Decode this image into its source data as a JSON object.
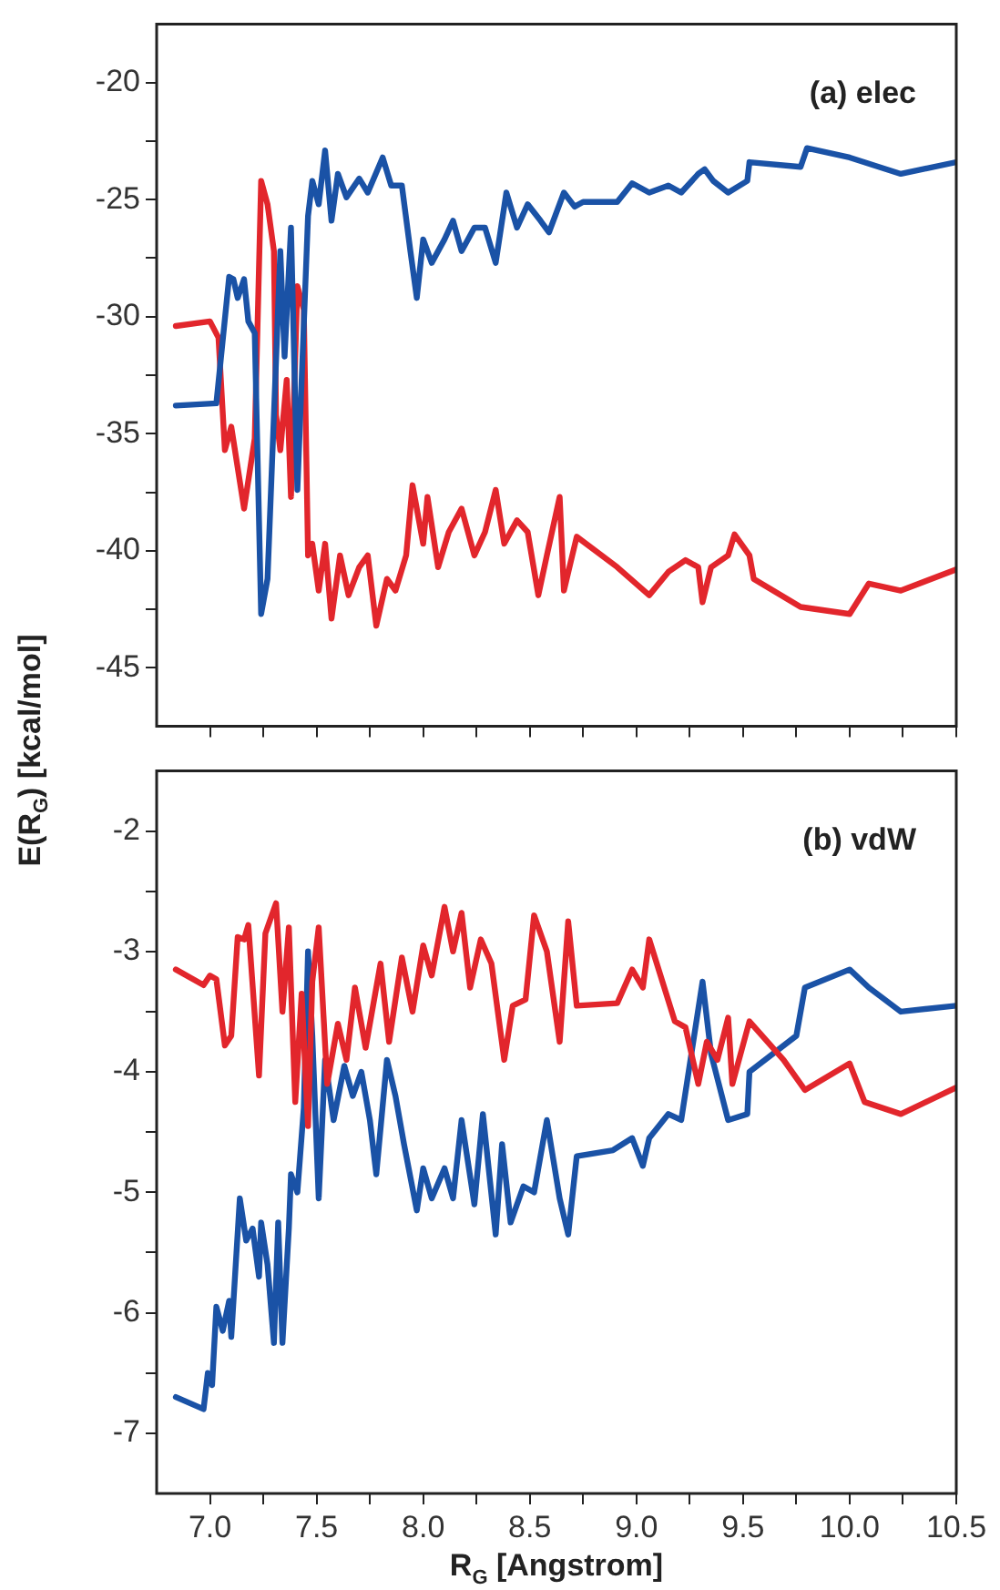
{
  "chart_data": [
    {
      "type": "line",
      "title": "(a) elec",
      "ylabel": "E(R$_{G}$) [kcal/mol]",
      "xlim": [
        6.75,
        10.5
      ],
      "ylim": [
        -47.5,
        -17.5
      ],
      "xticks": [
        {
          "value": 7.0,
          "label": null
        },
        {
          "value": 7.25,
          "label": null
        },
        {
          "value": 7.5,
          "label": null
        },
        {
          "value": 7.75,
          "label": null
        },
        {
          "value": 8.0,
          "label": null
        },
        {
          "value": 8.25,
          "label": null
        },
        {
          "value": 8.5,
          "label": null
        },
        {
          "value": 8.75,
          "label": null
        },
        {
          "value": 9.0,
          "label": null
        },
        {
          "value": 9.25,
          "label": null
        },
        {
          "value": 9.5,
          "label": null
        },
        {
          "value": 9.75,
          "label": null
        },
        {
          "value": 10.0,
          "label": null
        },
        {
          "value": 10.25,
          "label": null
        },
        {
          "value": 10.5,
          "label": null
        }
      ],
      "yticks": [
        {
          "value": -45,
          "label": "-45"
        },
        {
          "value": -42.5,
          "label": null
        },
        {
          "value": -40,
          "label": "-40"
        },
        {
          "value": -37.5,
          "label": null
        },
        {
          "value": -35,
          "label": "-35"
        },
        {
          "value": -32.5,
          "label": null
        },
        {
          "value": -30,
          "label": "-30"
        },
        {
          "value": -27.5,
          "label": null
        },
        {
          "value": -25,
          "label": "-25"
        },
        {
          "value": -22.5,
          "label": null
        },
        {
          "value": -20,
          "label": "-20"
        }
      ],
      "tick_labels": "y",
      "grid": false,
      "legend": false,
      "marker": "none",
      "line_style": "solid",
      "series": [
        {
          "color": "#1a52a6",
          "x": [
            6.84,
            7.03,
            7.09,
            7.11,
            7.13,
            7.16,
            7.18,
            7.21,
            7.24,
            7.27,
            7.3,
            7.33,
            7.35,
            7.38,
            7.41,
            7.46,
            7.48,
            7.51,
            7.54,
            7.57,
            7.6,
            7.64,
            7.7,
            7.74,
            7.81,
            7.85,
            7.9,
            7.94,
            7.97,
            8.0,
            8.04,
            8.1,
            8.14,
            8.18,
            8.24,
            8.29,
            8.34,
            8.39,
            8.44,
            8.49,
            8.55,
            8.59,
            8.66,
            8.71,
            8.75,
            8.91,
            8.98,
            9.06,
            9.15,
            9.21,
            9.29,
            9.32,
            9.36,
            9.43,
            9.52,
            9.53,
            9.77,
            9.8,
            10.0,
            10.24,
            10.5
          ],
          "values": [
            -33.8,
            -33.7,
            -28.3,
            -28.4,
            -29.2,
            -28.4,
            -30.2,
            -30.7,
            -42.7,
            -41.2,
            -34.2,
            -27.2,
            -31.7,
            -26.2,
            -37.4,
            -25.7,
            -24.2,
            -25.2,
            -22.9,
            -25.9,
            -23.9,
            -24.9,
            -24.1,
            -24.7,
            -23.2,
            -24.4,
            -24.4,
            -27.2,
            -29.2,
            -26.7,
            -27.7,
            -26.7,
            -25.9,
            -27.2,
            -26.2,
            -26.2,
            -27.7,
            -24.7,
            -26.2,
            -25.2,
            -25.9,
            -26.4,
            -24.7,
            -25.3,
            -25.1,
            -25.1,
            -24.3,
            -24.7,
            -24.4,
            -24.7,
            -23.9,
            -23.7,
            -24.2,
            -24.7,
            -24.2,
            -23.4,
            -23.6,
            -22.8,
            -23.2,
            -23.9,
            -23.4
          ]
        },
        {
          "color": "#e2262c",
          "x": [
            6.84,
            7.0,
            7.04,
            7.07,
            7.1,
            7.16,
            7.21,
            7.24,
            7.27,
            7.3,
            7.31,
            7.33,
            7.36,
            7.38,
            7.41,
            7.44,
            7.46,
            7.48,
            7.51,
            7.54,
            7.57,
            7.61,
            7.65,
            7.7,
            7.74,
            7.78,
            7.83,
            7.87,
            7.92,
            7.95,
            8.0,
            8.02,
            8.07,
            8.12,
            8.18,
            8.24,
            8.29,
            8.34,
            8.38,
            8.44,
            8.49,
            8.54,
            8.58,
            8.64,
            8.66,
            8.72,
            8.91,
            9.06,
            9.15,
            9.23,
            9.29,
            9.31,
            9.35,
            9.43,
            9.46,
            9.53,
            9.55,
            9.77,
            10.0,
            10.09,
            10.24,
            10.5
          ],
          "values": [
            -30.4,
            -30.2,
            -30.9,
            -35.7,
            -34.7,
            -38.2,
            -35.2,
            -24.2,
            -25.2,
            -27.2,
            -34.2,
            -35.7,
            -32.7,
            -37.7,
            -28.7,
            -29.7,
            -40.2,
            -39.7,
            -41.7,
            -39.7,
            -42.9,
            -40.2,
            -41.9,
            -40.7,
            -40.2,
            -43.2,
            -41.2,
            -41.7,
            -40.2,
            -37.2,
            -39.7,
            -37.7,
            -40.7,
            -39.2,
            -38.2,
            -40.2,
            -39.2,
            -37.4,
            -39.7,
            -38.7,
            -39.2,
            -41.9,
            -40.2,
            -37.7,
            -41.7,
            -39.4,
            -40.7,
            -41.9,
            -40.9,
            -40.4,
            -40.7,
            -42.2,
            -40.7,
            -40.2,
            -39.3,
            -40.2,
            -41.2,
            -42.4,
            -42.7,
            -41.4,
            -41.7,
            -40.8
          ]
        }
      ]
    },
    {
      "type": "line",
      "title": "(b) vdW",
      "xlabel": "R$_{G}$ [Angstrom]",
      "xlim": [
        6.75,
        10.5
      ],
      "ylim": [
        -7.5,
        -1.5
      ],
      "xticks": [
        {
          "value": 7.0,
          "label": "7.0"
        },
        {
          "value": 7.25,
          "label": null
        },
        {
          "value": 7.5,
          "label": "7.5"
        },
        {
          "value": 7.75,
          "label": null
        },
        {
          "value": 8.0,
          "label": "8.0"
        },
        {
          "value": 8.25,
          "label": null
        },
        {
          "value": 8.5,
          "label": "8.5"
        },
        {
          "value": 8.75,
          "label": null
        },
        {
          "value": 9.0,
          "label": "9.0"
        },
        {
          "value": 9.25,
          "label": null
        },
        {
          "value": 9.5,
          "label": "9.5"
        },
        {
          "value": 9.75,
          "label": null
        },
        {
          "value": 10.0,
          "label": "10.0"
        },
        {
          "value": 10.25,
          "label": null
        },
        {
          "value": 10.5,
          "label": "10.5"
        }
      ],
      "yticks": [
        {
          "value": -7,
          "label": "-7"
        },
        {
          "value": -6.5,
          "label": null
        },
        {
          "value": -6,
          "label": "-6"
        },
        {
          "value": -5.5,
          "label": null
        },
        {
          "value": -5,
          "label": "-5"
        },
        {
          "value": -4.5,
          "label": null
        },
        {
          "value": -4,
          "label": "-4"
        },
        {
          "value": -3.5,
          "label": null
        },
        {
          "value": -3,
          "label": "-3"
        },
        {
          "value": -2.5,
          "label": null
        },
        {
          "value": -2,
          "label": "-2"
        }
      ],
      "grid": false,
      "legend": false,
      "marker": "none",
      "line_style": "solid",
      "series": [
        {
          "color": "#e2262c",
          "x": [
            6.84,
            6.97,
            7.0,
            7.03,
            7.07,
            7.1,
            7.13,
            7.16,
            7.18,
            7.23,
            7.26,
            7.31,
            7.34,
            7.37,
            7.4,
            7.43,
            7.46,
            7.48,
            7.51,
            7.55,
            7.6,
            7.64,
            7.68,
            7.73,
            7.8,
            7.84,
            7.9,
            7.95,
            8.0,
            8.04,
            8.1,
            8.14,
            8.18,
            8.22,
            8.27,
            8.32,
            8.38,
            8.42,
            8.48,
            8.52,
            8.58,
            8.64,
            8.68,
            8.72,
            8.91,
            8.98,
            9.03,
            9.06,
            9.18,
            9.23,
            9.29,
            9.33,
            9.38,
            9.43,
            9.45,
            9.53,
            9.69,
            9.79,
            10.0,
            10.07,
            10.24,
            10.5
          ],
          "values": [
            -3.15,
            -3.28,
            -3.2,
            -3.23,
            -3.78,
            -3.7,
            -2.88,
            -2.9,
            -2.78,
            -4.03,
            -2.85,
            -2.6,
            -3.5,
            -2.8,
            -4.25,
            -3.35,
            -4.45,
            -3.25,
            -2.8,
            -4.1,
            -3.6,
            -3.9,
            -3.3,
            -3.8,
            -3.1,
            -3.75,
            -3.05,
            -3.5,
            -2.95,
            -3.2,
            -2.63,
            -3.0,
            -2.68,
            -3.3,
            -2.9,
            -3.1,
            -3.9,
            -3.45,
            -3.4,
            -2.7,
            -3.0,
            -3.75,
            -2.75,
            -3.45,
            -3.43,
            -3.15,
            -3.3,
            -2.9,
            -3.58,
            -3.63,
            -4.1,
            -3.75,
            -3.9,
            -3.55,
            -4.1,
            -3.58,
            -3.9,
            -4.15,
            -3.93,
            -4.25,
            -4.35,
            -4.13
          ]
        },
        {
          "color": "#1a52a6",
          "x": [
            6.84,
            6.97,
            6.99,
            7.01,
            7.03,
            7.06,
            7.09,
            7.1,
            7.14,
            7.17,
            7.2,
            7.23,
            7.24,
            7.27,
            7.3,
            7.32,
            7.34,
            7.37,
            7.38,
            7.41,
            7.44,
            7.46,
            7.48,
            7.51,
            7.54,
            7.58,
            7.63,
            7.67,
            7.71,
            7.75,
            7.78,
            7.83,
            7.87,
            7.91,
            7.97,
            8.0,
            8.04,
            8.1,
            8.14,
            8.18,
            8.24,
            8.28,
            8.34,
            8.37,
            8.41,
            8.47,
            8.52,
            8.58,
            8.64,
            8.68,
            8.72,
            8.89,
            8.98,
            9.03,
            9.06,
            9.15,
            9.21,
            9.31,
            9.35,
            9.43,
            9.52,
            9.53,
            9.75,
            9.79,
            10.0,
            10.09,
            10.24,
            10.5
          ],
          "values": [
            -6.7,
            -6.8,
            -6.5,
            -6.6,
            -5.95,
            -6.15,
            -5.9,
            -6.2,
            -5.05,
            -5.4,
            -5.3,
            -5.7,
            -5.25,
            -5.6,
            -6.25,
            -5.25,
            -6.25,
            -5.3,
            -4.85,
            -5.0,
            -4.3,
            -3.0,
            -3.7,
            -5.05,
            -3.9,
            -4.4,
            -3.95,
            -4.2,
            -4.0,
            -4.4,
            -4.85,
            -3.9,
            -4.2,
            -4.6,
            -5.15,
            -4.8,
            -5.05,
            -4.8,
            -5.05,
            -4.4,
            -5.1,
            -4.35,
            -5.35,
            -4.6,
            -5.25,
            -4.95,
            -5.0,
            -4.4,
            -5.05,
            -5.35,
            -4.7,
            -4.65,
            -4.55,
            -4.78,
            -4.55,
            -4.35,
            -4.4,
            -3.25,
            -3.85,
            -4.4,
            -4.35,
            -4.0,
            -3.7,
            -3.3,
            -3.15,
            -3.3,
            -3.5,
            -3.45
          ]
        }
      ]
    }
  ]
}
